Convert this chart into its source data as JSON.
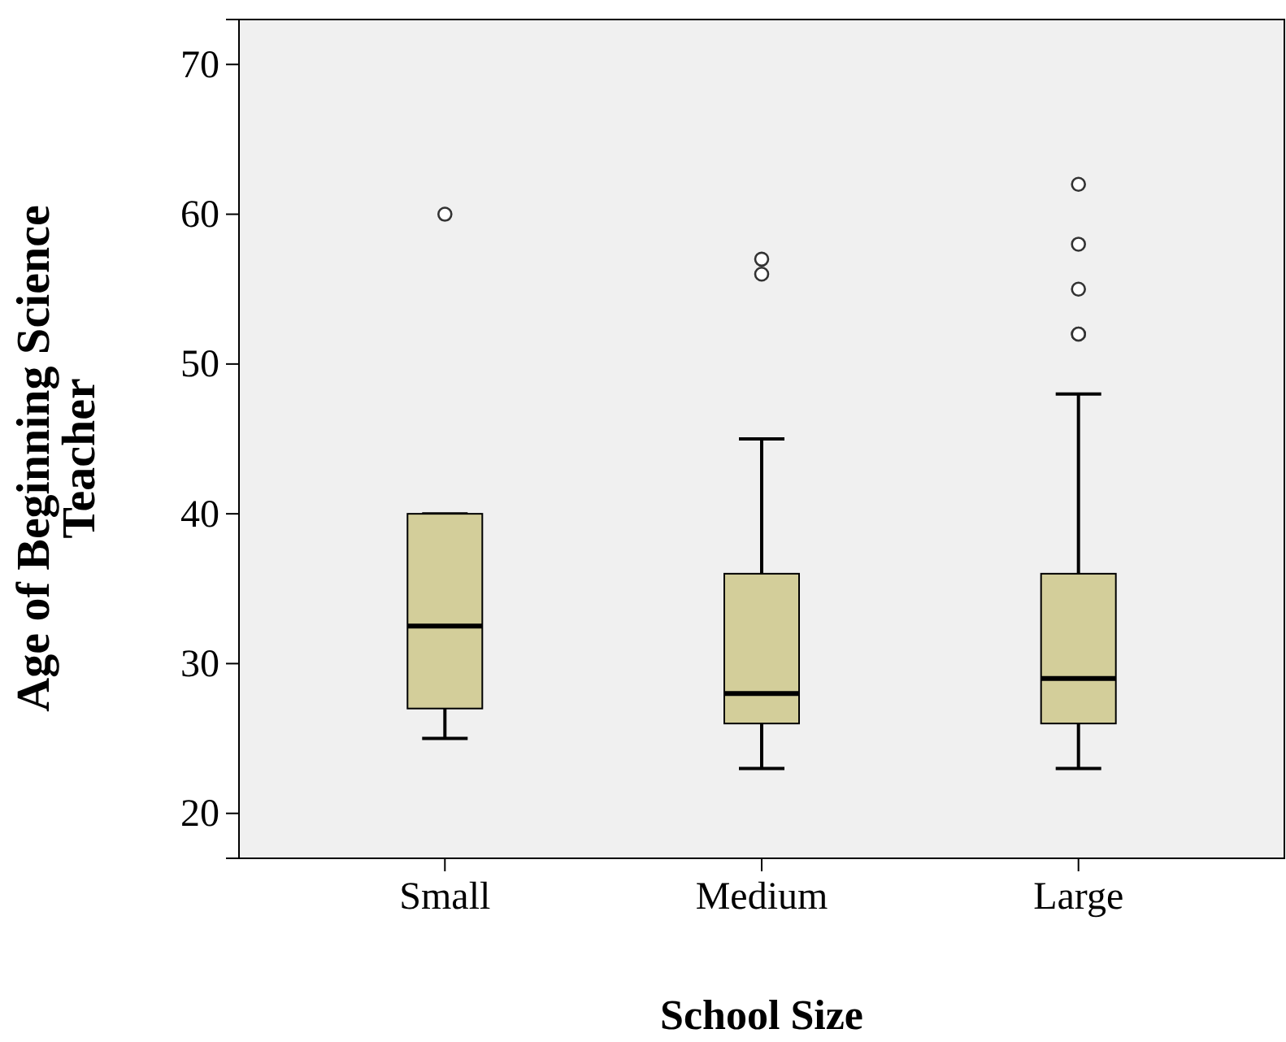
{
  "chart_data": {
    "type": "box",
    "xlabel": "School Size",
    "ylabel": "Age of Beginning Science Teacher",
    "categories": [
      "Small",
      "Medium",
      "Large"
    ],
    "color": "#d3ce9a",
    "ylim": [
      17,
      73
    ],
    "yticks": [
      20,
      30,
      40,
      50,
      60,
      70
    ],
    "boxes": [
      {
        "low": 25,
        "q1": 27,
        "median": 32.5,
        "q3": 40,
        "high": 40,
        "outliers": [
          60
        ]
      },
      {
        "low": 23,
        "q1": 26,
        "median": 28,
        "q3": 36,
        "high": 45,
        "outliers": [
          56,
          57
        ]
      },
      {
        "low": 23,
        "q1": 26,
        "median": 29,
        "q3": 36,
        "high": 48,
        "outliers": [
          52,
          52,
          55,
          58,
          62
        ]
      }
    ]
  }
}
